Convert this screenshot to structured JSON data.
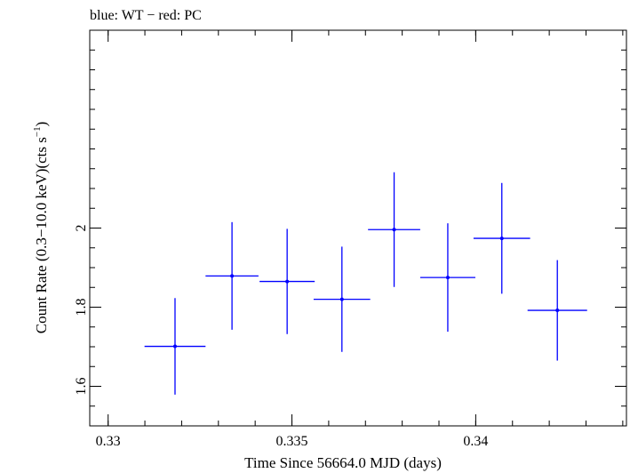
{
  "chart_data": {
    "type": "scatter",
    "title": "blue: WT − red: PC",
    "xlabel": "Time Since 56664.0 MJD (days)",
    "ylabel_main": "Count Rate (0.3−10.0 keV)(cts s",
    "ylabel_sup": "−1",
    "ylabel_close": ")",
    "xlim": [
      0.3295,
      0.3441
    ],
    "ylim": [
      1.5,
      2.5
    ],
    "x_ticks": [
      {
        "value": 0.33,
        "label": "0.33"
      },
      {
        "value": 0.335,
        "label": "0.335"
      },
      {
        "value": 0.34,
        "label": "0.34"
      }
    ],
    "y_ticks": [
      {
        "value": 1.6,
        "label": "1.6"
      },
      {
        "value": 1.8,
        "label": "1.8"
      },
      {
        "value": 2.0,
        "label": "2"
      }
    ],
    "x_minor_step": 0.001,
    "y_minor_step": 0.05,
    "series": [
      {
        "name": "WT",
        "color": "#0000ff",
        "points": [
          {
            "x": 0.33182,
            "xerr": 0.00083,
            "y": 1.701,
            "yerr": 0.122
          },
          {
            "x": 0.33337,
            "xerr": 0.00072,
            "y": 1.879,
            "yerr": 0.136
          },
          {
            "x": 0.33487,
            "xerr": 0.00075,
            "y": 1.865,
            "yerr": 0.133
          },
          {
            "x": 0.33636,
            "xerr": 0.00077,
            "y": 1.82,
            "yerr": 0.133
          },
          {
            "x": 0.33778,
            "xerr": 0.00071,
            "y": 1.996,
            "yerr": 0.145
          },
          {
            "x": 0.33924,
            "xerr": 0.00075,
            "y": 1.875,
            "yerr": 0.137
          },
          {
            "x": 0.34071,
            "xerr": 0.00077,
            "y": 1.974,
            "yerr": 0.14
          },
          {
            "x": 0.34222,
            "xerr": 0.00081,
            "y": 1.792,
            "yerr": 0.127
          }
        ]
      }
    ]
  }
}
